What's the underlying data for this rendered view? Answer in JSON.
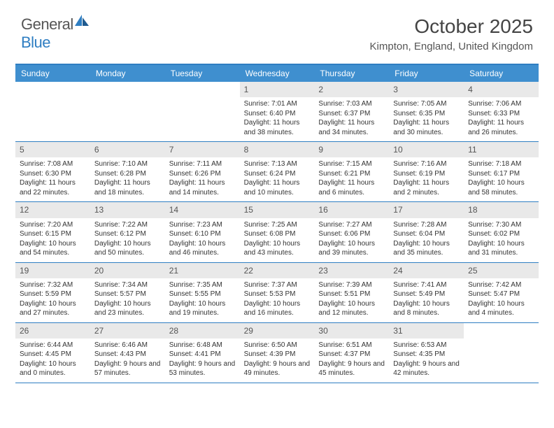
{
  "logo": {
    "text1": "General",
    "text2": "Blue"
  },
  "title": "October 2025",
  "location": "Kimpton, England, United Kingdom",
  "colors": {
    "header_bg": "#3f8fcf",
    "accent": "#2f7ec2",
    "daynum_bg": "#e9e9e9",
    "text": "#333333",
    "title_text": "#444444"
  },
  "dayNames": [
    "Sunday",
    "Monday",
    "Tuesday",
    "Wednesday",
    "Thursday",
    "Friday",
    "Saturday"
  ],
  "weeks": [
    [
      {
        "empty": true
      },
      {
        "empty": true
      },
      {
        "empty": true
      },
      {
        "n": "1",
        "sr": "7:01 AM",
        "ss": "6:40 PM",
        "dh": "11",
        "dm": "38"
      },
      {
        "n": "2",
        "sr": "7:03 AM",
        "ss": "6:37 PM",
        "dh": "11",
        "dm": "34"
      },
      {
        "n": "3",
        "sr": "7:05 AM",
        "ss": "6:35 PM",
        "dh": "11",
        "dm": "30"
      },
      {
        "n": "4",
        "sr": "7:06 AM",
        "ss": "6:33 PM",
        "dh": "11",
        "dm": "26"
      }
    ],
    [
      {
        "n": "5",
        "sr": "7:08 AM",
        "ss": "6:30 PM",
        "dh": "11",
        "dm": "22"
      },
      {
        "n": "6",
        "sr": "7:10 AM",
        "ss": "6:28 PM",
        "dh": "11",
        "dm": "18"
      },
      {
        "n": "7",
        "sr": "7:11 AM",
        "ss": "6:26 PM",
        "dh": "11",
        "dm": "14"
      },
      {
        "n": "8",
        "sr": "7:13 AM",
        "ss": "6:24 PM",
        "dh": "11",
        "dm": "10"
      },
      {
        "n": "9",
        "sr": "7:15 AM",
        "ss": "6:21 PM",
        "dh": "11",
        "dm": "6"
      },
      {
        "n": "10",
        "sr": "7:16 AM",
        "ss": "6:19 PM",
        "dh": "11",
        "dm": "2"
      },
      {
        "n": "11",
        "sr": "7:18 AM",
        "ss": "6:17 PM",
        "dh": "10",
        "dm": "58"
      }
    ],
    [
      {
        "n": "12",
        "sr": "7:20 AM",
        "ss": "6:15 PM",
        "dh": "10",
        "dm": "54"
      },
      {
        "n": "13",
        "sr": "7:22 AM",
        "ss": "6:12 PM",
        "dh": "10",
        "dm": "50"
      },
      {
        "n": "14",
        "sr": "7:23 AM",
        "ss": "6:10 PM",
        "dh": "10",
        "dm": "46"
      },
      {
        "n": "15",
        "sr": "7:25 AM",
        "ss": "6:08 PM",
        "dh": "10",
        "dm": "43"
      },
      {
        "n": "16",
        "sr": "7:27 AM",
        "ss": "6:06 PM",
        "dh": "10",
        "dm": "39"
      },
      {
        "n": "17",
        "sr": "7:28 AM",
        "ss": "6:04 PM",
        "dh": "10",
        "dm": "35"
      },
      {
        "n": "18",
        "sr": "7:30 AM",
        "ss": "6:02 PM",
        "dh": "10",
        "dm": "31"
      }
    ],
    [
      {
        "n": "19",
        "sr": "7:32 AM",
        "ss": "5:59 PM",
        "dh": "10",
        "dm": "27"
      },
      {
        "n": "20",
        "sr": "7:34 AM",
        "ss": "5:57 PM",
        "dh": "10",
        "dm": "23"
      },
      {
        "n": "21",
        "sr": "7:35 AM",
        "ss": "5:55 PM",
        "dh": "10",
        "dm": "19"
      },
      {
        "n": "22",
        "sr": "7:37 AM",
        "ss": "5:53 PM",
        "dh": "10",
        "dm": "16"
      },
      {
        "n": "23",
        "sr": "7:39 AM",
        "ss": "5:51 PM",
        "dh": "10",
        "dm": "12"
      },
      {
        "n": "24",
        "sr": "7:41 AM",
        "ss": "5:49 PM",
        "dh": "10",
        "dm": "8"
      },
      {
        "n": "25",
        "sr": "7:42 AM",
        "ss": "5:47 PM",
        "dh": "10",
        "dm": "4"
      }
    ],
    [
      {
        "n": "26",
        "sr": "6:44 AM",
        "ss": "4:45 PM",
        "dh": "10",
        "dm": "0"
      },
      {
        "n": "27",
        "sr": "6:46 AM",
        "ss": "4:43 PM",
        "dh": "9",
        "dm": "57"
      },
      {
        "n": "28",
        "sr": "6:48 AM",
        "ss": "4:41 PM",
        "dh": "9",
        "dm": "53"
      },
      {
        "n": "29",
        "sr": "6:50 AM",
        "ss": "4:39 PM",
        "dh": "9",
        "dm": "49"
      },
      {
        "n": "30",
        "sr": "6:51 AM",
        "ss": "4:37 PM",
        "dh": "9",
        "dm": "45"
      },
      {
        "n": "31",
        "sr": "6:53 AM",
        "ss": "4:35 PM",
        "dh": "9",
        "dm": "42"
      },
      {
        "empty": true
      }
    ]
  ],
  "labels": {
    "sunrise": "Sunrise:",
    "sunset": "Sunset:",
    "daylight_pre": "Daylight:",
    "hours": "hours",
    "and": "and",
    "minutes": "minutes."
  }
}
